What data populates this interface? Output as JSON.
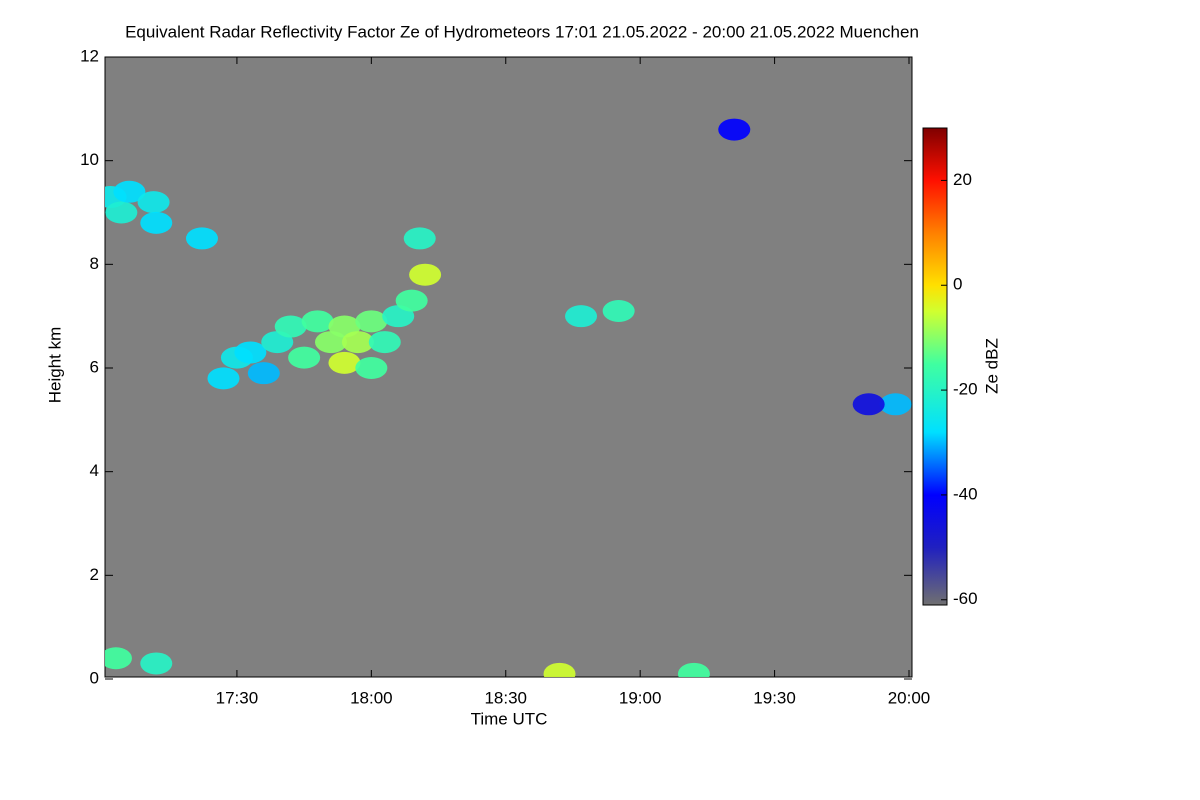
{
  "chart_data": {
    "type": "heatmap",
    "title": "Equivalent Radar Reflectivity Factor Ze of Hydrometeors   17:01 21.05.2022 - 20:00 21.05.2022 Muenchen",
    "x_label": "Time UTC",
    "y_label": "Height km",
    "colorbar_label": "Ze dBZ",
    "background_color": "#808080",
    "xlim": [
      17.0167,
      20.0
    ],
    "xticks": [
      {
        "value": 17.5,
        "label": "17:30"
      },
      {
        "value": 18.0,
        "label": "18:00"
      },
      {
        "value": 18.5,
        "label": "18:30"
      },
      {
        "value": 19.0,
        "label": "19:00"
      },
      {
        "value": 19.5,
        "label": "19:30"
      },
      {
        "value": 20.0,
        "label": "20:00"
      }
    ],
    "ylim": [
      0,
      12
    ],
    "yticks": [
      0,
      2,
      4,
      6,
      8,
      10,
      12
    ],
    "zlim": [
      -61,
      30
    ],
    "zticks": [
      -60,
      -40,
      -20,
      0,
      20
    ],
    "colorscale": [
      [
        -61,
        "#707070"
      ],
      [
        -50,
        "#2020c0"
      ],
      [
        -40,
        "#0000ff"
      ],
      [
        -28,
        "#00e0ff"
      ],
      [
        -15,
        "#40ffa0"
      ],
      [
        -5,
        "#d0ff30"
      ],
      [
        0,
        "#ffe000"
      ],
      [
        10,
        "#ff8000"
      ],
      [
        20,
        "#ff1000"
      ],
      [
        30,
        "#800000"
      ]
    ],
    "x": [
      17.03,
      17.07,
      17.1,
      17.19,
      17.2,
      17.37,
      17.45,
      17.5,
      17.55,
      17.6,
      17.65,
      17.7,
      17.75,
      17.8,
      17.85,
      17.9,
      17.9,
      17.95,
      18.0,
      18.0,
      18.05,
      18.1,
      18.15,
      18.2,
      18.18,
      18.78,
      18.92,
      19.35,
      19.95,
      19.85,
      17.05,
      17.2,
      18.7,
      19.2
    ],
    "y": [
      9.3,
      9.0,
      9.4,
      9.2,
      8.8,
      8.5,
      5.8,
      6.2,
      6.3,
      5.9,
      6.5,
      6.8,
      6.2,
      6.9,
      6.5,
      6.1,
      6.8,
      6.5,
      6.9,
      6.0,
      6.5,
      7.0,
      7.3,
      7.8,
      8.5,
      7.0,
      7.1,
      10.6,
      5.3,
      5.3,
      0.4,
      0.3,
      0.1,
      0.1
    ],
    "z": [
      -25,
      -22,
      -28,
      -25,
      -28,
      -28,
      -28,
      -25,
      -28,
      -30,
      -22,
      -18,
      -15,
      -15,
      -10,
      -5,
      -10,
      -8,
      -12,
      -15,
      -18,
      -20,
      -15,
      -5,
      -20,
      -22,
      -18,
      -40,
      -30,
      -45,
      -15,
      -20,
      -5,
      -15
    ]
  }
}
